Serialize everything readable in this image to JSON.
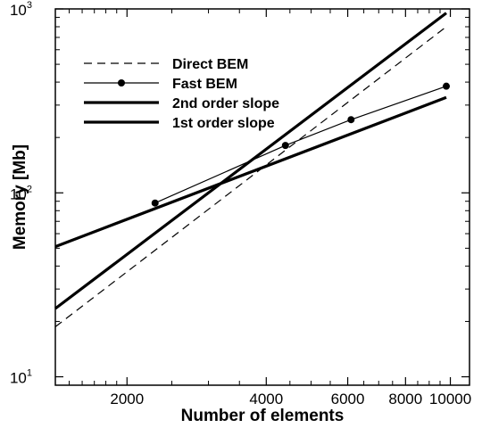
{
  "chart_data": {
    "type": "line",
    "xscale": "log",
    "yscale": "log",
    "xlim": [
      1400,
      11000
    ],
    "ylim": [
      9,
      1000
    ],
    "xlabel": "Number of elements",
    "ylabel": "Memory [Mb]",
    "xticks": [
      2000,
      4000,
      6000,
      8000,
      10000
    ],
    "xtick_labels": [
      "2000",
      "4000",
      "6000",
      "8000",
      "10000"
    ],
    "yticks": [
      10,
      100,
      1000
    ],
    "ytick_labels": [
      {
        "base": "10",
        "exp": "1"
      },
      {
        "base": "10",
        "exp": "2"
      },
      {
        "base": "10",
        "exp": "3"
      }
    ],
    "legend_position": "top-left",
    "series": [
      {
        "name": "Direct BEM",
        "style": "dashed",
        "width": 1.2,
        "marker": "none",
        "x": [
          1400,
          9800
        ],
        "y": [
          18.7,
          800
        ]
      },
      {
        "name": "Fast BEM",
        "style": "solid",
        "width": 1.2,
        "marker": "circle",
        "x": [
          2300,
          4400,
          6100,
          9800
        ],
        "y": [
          88,
          181,
          250,
          380
        ]
      },
      {
        "name": "2nd order slope",
        "style": "solid",
        "width": 3.2,
        "marker": "none",
        "x": [
          1400,
          9800
        ],
        "y": [
          23.5,
          950
        ]
      },
      {
        "name": "1st order slope",
        "style": "solid",
        "width": 3.2,
        "marker": "none",
        "x": [
          1400,
          9800
        ],
        "y": [
          51,
          330
        ]
      }
    ]
  }
}
